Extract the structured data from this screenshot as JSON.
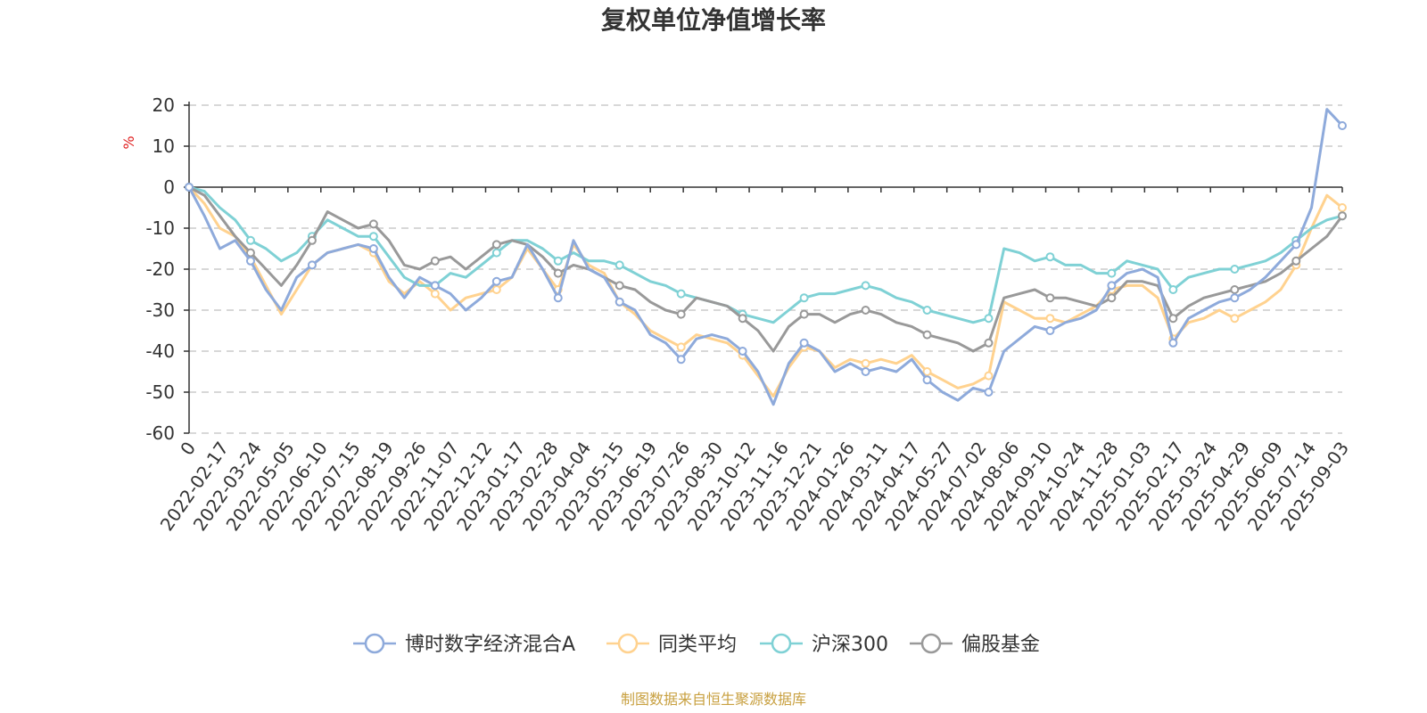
{
  "chart_data": {
    "type": "line",
    "title": "复权单位净值增长率",
    "y_unit": "%",
    "ylim": [
      -60,
      20
    ],
    "yticks": [
      20,
      10,
      0,
      -10,
      -20,
      -30,
      -40,
      -50,
      -60
    ],
    "grid": true,
    "legend_position": "bottom-center",
    "x_ticks": [
      "0",
      "2022-02-17",
      "2022-03-24",
      "2022-05-05",
      "2022-06-10",
      "2022-07-15",
      "2022-08-19",
      "2022-09-26",
      "2022-11-07",
      "2022-12-12",
      "2023-01-17",
      "2023-02-28",
      "2023-04-04",
      "2023-05-15",
      "2023-06-19",
      "2023-07-26",
      "2023-08-30",
      "2023-10-12",
      "2023-11-16",
      "2023-12-21",
      "2024-01-26",
      "2024-03-11",
      "2024-04-17",
      "2024-05-27",
      "2024-07-02",
      "2024-08-06",
      "2024-09-10",
      "2024-10-24",
      "2024-11-28",
      "2025-01-03",
      "2025-02-17",
      "2025-03-24",
      "2025-04-29",
      "2025-06-09",
      "2025-07-14",
      "2025-09-03"
    ],
    "series": [
      {
        "name": "博时数字经济混合A",
        "color": "#8eaadb",
        "values": [
          0,
          -7,
          -15,
          -13,
          -18,
          -25,
          -30,
          -22,
          -19,
          -16,
          -15,
          -14,
          -15,
          -22,
          -27,
          -22,
          -24,
          -26,
          -30,
          -27,
          -23,
          -22,
          -14,
          -20,
          -27,
          -13,
          -20,
          -22,
          -28,
          -30,
          -36,
          -38,
          -42,
          -37,
          -36,
          -37,
          -40,
          -45,
          -53,
          -43,
          -38,
          -40,
          -45,
          -43,
          -45,
          -44,
          -45,
          -42,
          -47,
          -50,
          -52,
          -49,
          -50,
          -40,
          -37,
          -34,
          -35,
          -33,
          -32,
          -30,
          -24,
          -21,
          -20,
          -22,
          -38,
          -32,
          -30,
          -28,
          -27,
          -25,
          -22,
          -18,
          -14,
          -5,
          19,
          15
        ]
      },
      {
        "name": "同类平均",
        "color": "#ffd28f",
        "values": [
          0,
          -4,
          -10,
          -12,
          -17,
          -24,
          -31,
          -25,
          -19,
          -16,
          -15,
          -14,
          -16,
          -23,
          -26,
          -23,
          -26,
          -30,
          -27,
          -26,
          -25,
          -22,
          -15,
          -20,
          -25,
          -14,
          -19,
          -21,
          -28,
          -31,
          -35,
          -37,
          -39,
          -36,
          -37,
          -38,
          -41,
          -46,
          -51,
          -44,
          -39,
          -40,
          -44,
          -42,
          -43,
          -42,
          -43,
          -41,
          -45,
          -47,
          -49,
          -48,
          -46,
          -28,
          -30,
          -32,
          -32,
          -33,
          -31,
          -29,
          -25,
          -24,
          -24,
          -27,
          -37,
          -33,
          -32,
          -30,
          -32,
          -30,
          -28,
          -25,
          -19,
          -10,
          -2,
          -5
        ]
      },
      {
        "name": "沪深300",
        "color": "#7fd1d5",
        "values": [
          0,
          -1,
          -5,
          -8,
          -13,
          -15,
          -18,
          -16,
          -12,
          -8,
          -10,
          -12,
          -12,
          -17,
          -22,
          -24,
          -24,
          -21,
          -22,
          -19,
          -16,
          -13,
          -13,
          -15,
          -18,
          -16,
          -18,
          -18,
          -19,
          -21,
          -23,
          -24,
          -26,
          -27,
          -28,
          -29,
          -31,
          -32,
          -33,
          -30,
          -27,
          -26,
          -26,
          -25,
          -24,
          -25,
          -27,
          -28,
          -30,
          -31,
          -32,
          -33,
          -32,
          -15,
          -16,
          -18,
          -17,
          -19,
          -19,
          -21,
          -21,
          -18,
          -19,
          -20,
          -25,
          -22,
          -21,
          -20,
          -20,
          -19,
          -18,
          -16,
          -13,
          -10,
          -8,
          -7
        ]
      },
      {
        "name": "偏股基金",
        "color": "#999999",
        "values": [
          0,
          -2,
          -7,
          -12,
          -16,
          -20,
          -24,
          -19,
          -13,
          -6,
          -8,
          -10,
          -9,
          -13,
          -19,
          -20,
          -18,
          -17,
          -20,
          -17,
          -14,
          -13,
          -14,
          -17,
          -21,
          -19,
          -20,
          -22,
          -24,
          -25,
          -28,
          -30,
          -31,
          -27,
          -28,
          -29,
          -32,
          -35,
          -40,
          -34,
          -31,
          -31,
          -33,
          -31,
          -30,
          -31,
          -33,
          -34,
          -36,
          -37,
          -38,
          -40,
          -38,
          -27,
          -26,
          -25,
          -27,
          -27,
          -28,
          -29,
          -27,
          -23,
          -23,
          -24,
          -32,
          -29,
          -27,
          -26,
          -25,
          -24,
          -23,
          -21,
          -18,
          -15,
          -12,
          -7
        ]
      }
    ]
  },
  "footer": {
    "source": "制图数据来自恒生聚源数据库"
  }
}
